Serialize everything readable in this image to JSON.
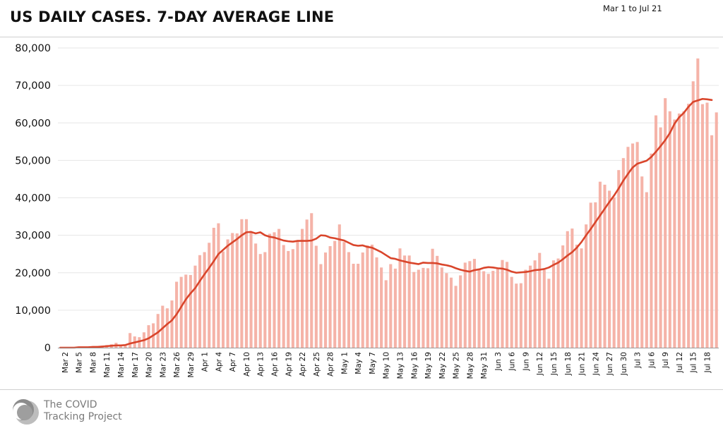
{
  "header": {
    "title": "US DAILY CASES. 7-DAY AVERAGE LINE",
    "date_range": "Mar 1 to Jul 21"
  },
  "footer": {
    "logo_line1": "The COVID",
    "logo_line2": "Tracking Project"
  },
  "colors": {
    "bar": "#f5b3a8",
    "line": "#d9452b",
    "grid": "#e6e6e6",
    "axis": "#9a9a9a",
    "logo_gray": "#9e9e9e"
  },
  "chart_data": {
    "type": "bar",
    "title": "US DAILY CASES. 7-DAY AVERAGE LINE",
    "x_start": "Mar 1",
    "ylim": [
      0,
      80000
    ],
    "yticks": [
      0,
      10000,
      20000,
      30000,
      40000,
      50000,
      60000,
      70000,
      80000
    ],
    "ytick_labels": [
      "0",
      "10,000",
      "20,000",
      "30,000",
      "40,000",
      "50,000",
      "60,000",
      "70,000",
      "80,000"
    ],
    "xtick_labels": [
      "Mar 2",
      "Mar 5",
      "Mar 8",
      "Mar 11",
      "Mar 14",
      "Mar 17",
      "Mar 20",
      "Mar 23",
      "Mar 26",
      "Mar 29",
      "Apr 1",
      "Apr 4",
      "Apr 7",
      "Apr 10",
      "Apr 13",
      "Apr 16",
      "Apr 19",
      "Apr 22",
      "Apr 25",
      "Apr 28",
      "May 1",
      "May 4",
      "May 7",
      "May 10",
      "May 13",
      "May 16",
      "May 19",
      "May 22",
      "May 25",
      "May 28",
      "May 31",
      "Jun 3",
      "Jun 6",
      "Jun 9",
      "Jun 12",
      "Jun 15",
      "Jun 18",
      "Jun 21",
      "Jun 24",
      "Jun 27",
      "Jun 30",
      "Jul 3",
      "Jul 6",
      "Jul 9",
      "Jul 12",
      "Jul 15",
      "Jul 18"
    ],
    "grid": true,
    "legend": "none",
    "series": [
      {
        "type": "bar",
        "values": [
          0,
          0,
          0,
          100,
          100,
          200,
          200,
          300,
          400,
          500,
          700,
          900,
          1300,
          400,
          500,
          3900,
          3000,
          2800,
          4100,
          6000,
          6500,
          9000,
          11200,
          10500,
          12600,
          17600,
          18900,
          19500,
          19400,
          21900,
          24700,
          25500,
          28000,
          32000,
          33200,
          25700,
          28900,
          30600,
          30500,
          34300,
          34300,
          30800,
          27800,
          25000,
          25500,
          30400,
          30800,
          31700,
          27400,
          25800,
          26300,
          28500,
          31700,
          34200,
          35900,
          27200,
          22300,
          25400,
          27100,
          28500,
          32900,
          28200,
          25500,
          22400,
          22400,
          25400,
          27300,
          27500,
          24100,
          21400,
          18000,
          22300,
          21100,
          26500,
          24600,
          24600,
          20200,
          20800,
          21300,
          21200,
          26400,
          24500,
          21400,
          19900,
          18700,
          16500,
          19300,
          22700,
          23100,
          23700,
          21100,
          20400,
          19700,
          20500,
          21000,
          23400,
          22900,
          18900,
          17100,
          17200,
          20800,
          21900,
          23300,
          25300,
          20800,
          18400,
          23300,
          23800,
          27300,
          31100,
          31800,
          27500,
          26500,
          32900,
          38700,
          38800,
          44300,
          43500,
          41900,
          40100,
          47400,
          50600,
          53600,
          54500,
          54900,
          45700,
          41500,
          51800,
          62000,
          58800,
          66600,
          63100,
          60900,
          62500,
          63100,
          65100,
          71100,
          77200,
          65000,
          65400,
          56700,
          62800
        ]
      },
      {
        "type": "line",
        "name": "7-day average",
        "values": [
          0,
          0,
          0,
          0,
          100,
          100,
          100,
          200,
          200,
          300,
          400,
          500,
          600,
          600,
          700,
          1100,
          1400,
          1700,
          2000,
          2500,
          3300,
          4100,
          5200,
          6300,
          7300,
          8900,
          10900,
          12900,
          14500,
          15900,
          17800,
          19600,
          21300,
          23100,
          25000,
          26100,
          27200,
          28100,
          29000,
          30000,
          30800,
          30900,
          30500,
          30800,
          30000,
          29600,
          29400,
          29000,
          28600,
          28400,
          28300,
          28500,
          28500,
          28500,
          28600,
          29100,
          30000,
          29900,
          29400,
          29200,
          28900,
          28600,
          28000,
          27400,
          27200,
          27300,
          26900,
          26700,
          26100,
          25500,
          24700,
          23900,
          23700,
          23300,
          23000,
          22700,
          22500,
          22300,
          22700,
          22600,
          22600,
          22500,
          22200,
          22000,
          21700,
          21200,
          20800,
          20500,
          20300,
          20700,
          20900,
          21300,
          21500,
          21400,
          21200,
          21100,
          20800,
          20300,
          20000,
          20100,
          20200,
          20400,
          20700,
          20800,
          21000,
          21400,
          22100,
          22700,
          23600,
          24600,
          25500,
          26700,
          28200,
          30000,
          31700,
          33500,
          35300,
          37100,
          38900,
          40600,
          42500,
          44600,
          46400,
          48100,
          49100,
          49500,
          49900,
          50900,
          52300,
          53800,
          55400,
          57300,
          59800,
          61500,
          62700,
          64300,
          65600,
          66000,
          66400,
          66300,
          66100
        ]
      }
    ]
  }
}
